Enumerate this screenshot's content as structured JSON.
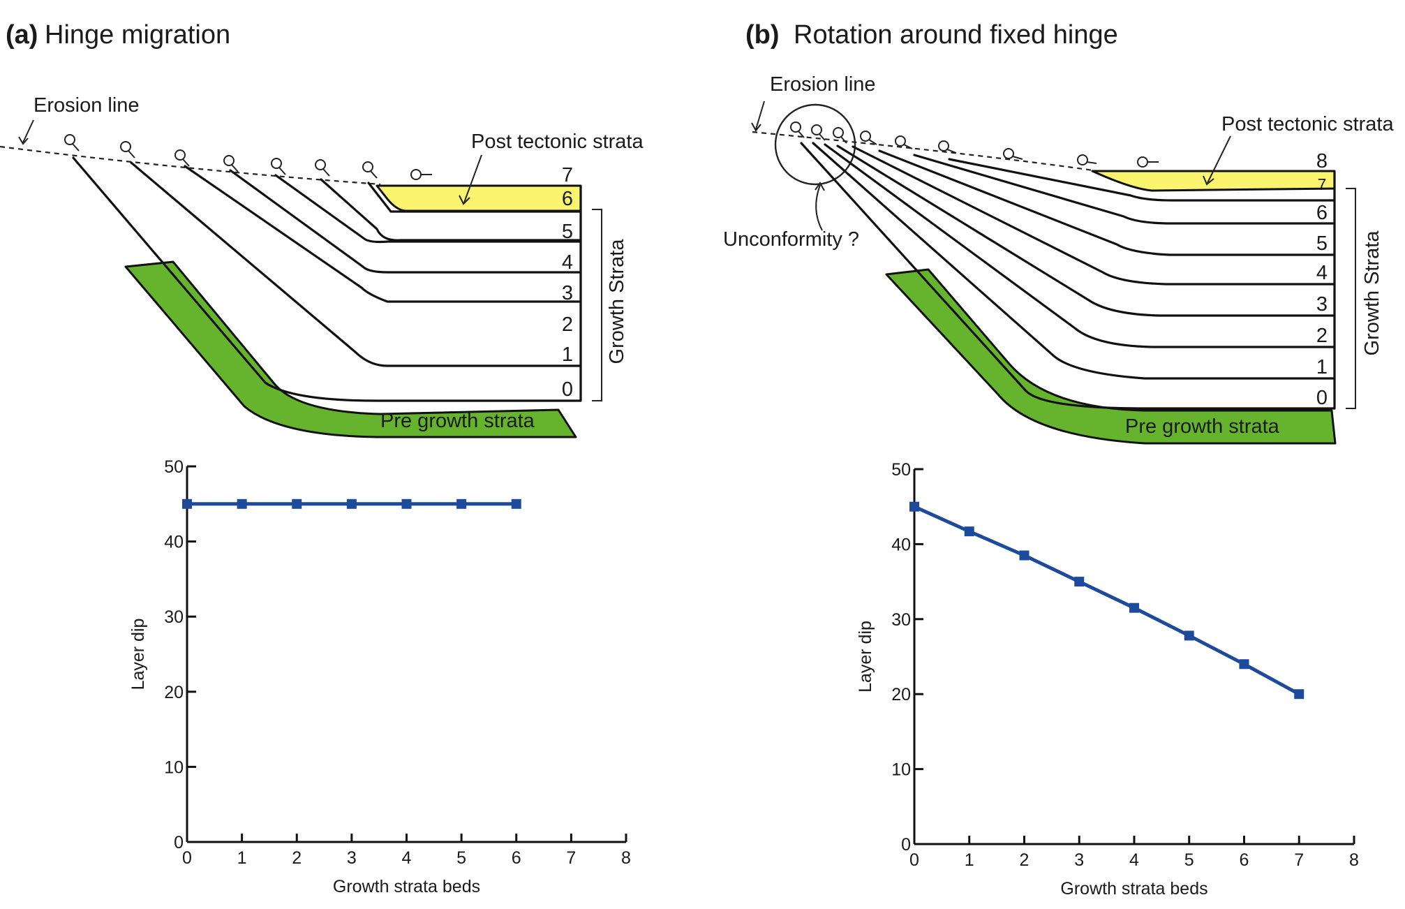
{
  "panel_a": {
    "letter": "(a)",
    "title": "Hinge migration",
    "erosion_label": "Erosion line",
    "post_label": "Post tectonic strata",
    "growth_label": "Growth Strata",
    "pre_label": "Pre growth strata",
    "bed_numbers": [
      "0",
      "1",
      "2",
      "3",
      "4",
      "5",
      "6",
      "7"
    ]
  },
  "panel_b": {
    "letter": "(b)",
    "title": "Rotation around fixed hinge",
    "erosion_label": "Erosion line",
    "post_label": "Post tectonic strata",
    "growth_label": "Growth Strata",
    "pre_label": "Pre growth strata",
    "unconformity_label": "Unconformity ?",
    "bed_numbers": [
      "0",
      "1",
      "2",
      "3",
      "4",
      "5",
      "6",
      "7",
      "8"
    ]
  },
  "colors": {
    "pre_growth": "#66b32e",
    "post_tectonic": "#fbf46e",
    "series": "#1d4a9b"
  },
  "chart_data": [
    {
      "type": "line",
      "panel": "a",
      "xlabel": "Growth strata beds",
      "ylabel": "Layer dip",
      "xlim": [
        0,
        8
      ],
      "ylim": [
        0,
        50
      ],
      "x_ticks": [
        "0",
        "1",
        "2",
        "3",
        "4",
        "5",
        "6",
        "7",
        "8"
      ],
      "y_ticks": [
        "0",
        "10",
        "20",
        "30",
        "40",
        "50"
      ],
      "x": [
        0,
        1,
        2,
        3,
        4,
        5,
        6
      ],
      "y": [
        45,
        45,
        45,
        45,
        45,
        45,
        45
      ]
    },
    {
      "type": "line",
      "panel": "b",
      "xlabel": "Growth strata beds",
      "ylabel": "Layer dip",
      "xlim": [
        0,
        8
      ],
      "ylim": [
        0,
        50
      ],
      "x_ticks": [
        "0",
        "1",
        "2",
        "3",
        "4",
        "5",
        "6",
        "7",
        "8"
      ],
      "y_ticks": [
        "0",
        "10",
        "20",
        "30",
        "40",
        "50"
      ],
      "x": [
        0,
        1,
        2,
        3,
        4,
        5,
        6,
        7
      ],
      "y": [
        45,
        41.7,
        38.5,
        35,
        31.5,
        27.8,
        24,
        20
      ]
    }
  ]
}
